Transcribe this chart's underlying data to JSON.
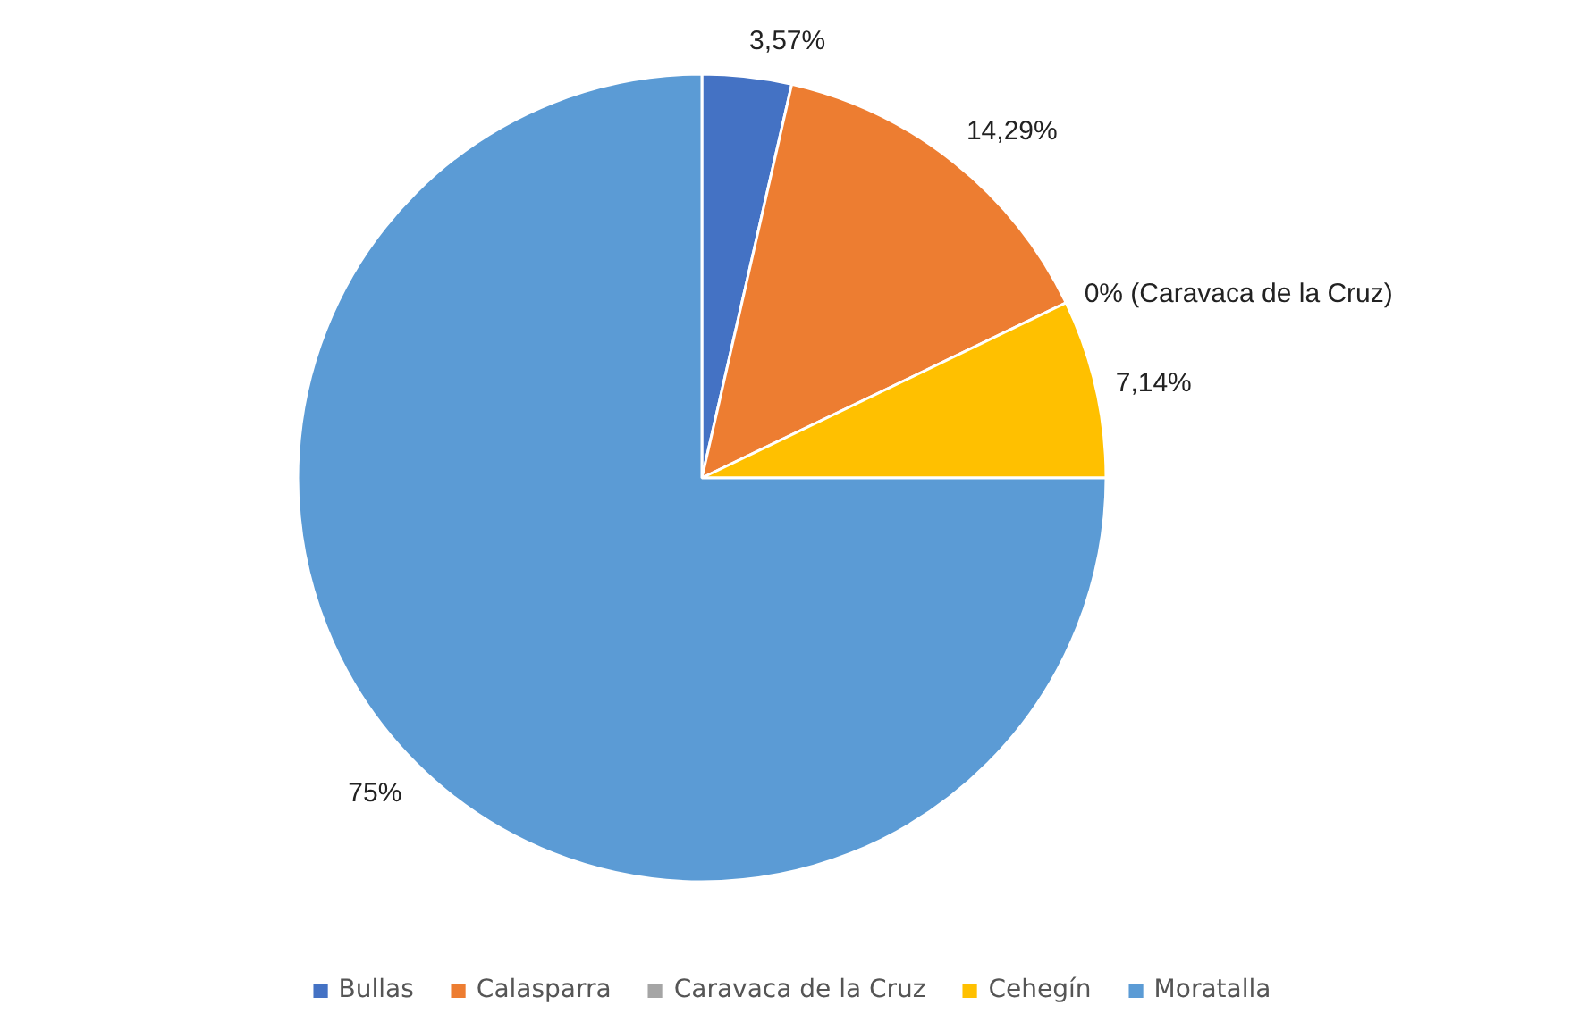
{
  "chart_data": {
    "type": "pie",
    "categories": [
      "Bullas",
      "Calasparra",
      "Caravaca de la Cruz",
      "Cehegín",
      "Moratalla"
    ],
    "values": [
      3.57,
      14.29,
      0,
      7.14,
      75
    ],
    "colors": [
      "#4472c4",
      "#ed7d31",
      "#a5a5a5",
      "#ffc000",
      "#5b9bd5"
    ],
    "value_labels": [
      "3,57%",
      "14,29%",
      "0% (Caravaca de la Cruz)",
      "7,14%",
      "75%"
    ],
    "legend": "bottom"
  }
}
